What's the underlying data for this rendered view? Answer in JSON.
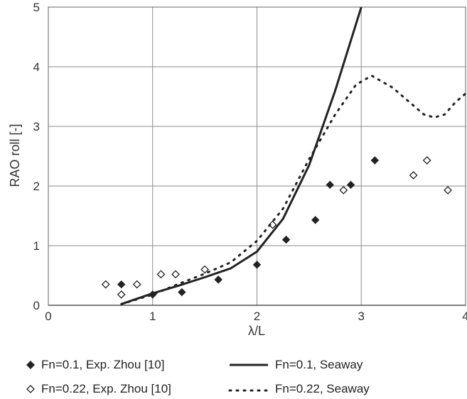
{
  "chart_data": {
    "type": "scatter",
    "xlabel": "λ/L",
    "ylabel": "RAO roll [-]",
    "xlim": [
      0,
      4
    ],
    "ylim": [
      0,
      5
    ],
    "xticks": [
      "0",
      "1",
      "2",
      "3",
      "4"
    ],
    "yticks": [
      "0",
      "1",
      "2",
      "3",
      "4",
      "5"
    ],
    "grid": true,
    "legend_position": "bottom",
    "series": [
      {
        "name": "Fn=0.1, Exp. Zhou [10]",
        "kind": "scatter",
        "marker": "filled-diamond",
        "color": "#222222",
        "points": [
          [
            0.7,
            0.35
          ],
          [
            1.0,
            0.18
          ],
          [
            1.28,
            0.22
          ],
          [
            1.63,
            0.43
          ],
          [
            2.0,
            0.68
          ],
          [
            2.28,
            1.1
          ],
          [
            2.56,
            1.43
          ],
          [
            2.7,
            2.02
          ],
          [
            2.9,
            2.02
          ],
          [
            3.13,
            2.43
          ]
        ]
      },
      {
        "name": "Fn=0.1, Seaway",
        "kind": "line",
        "style": "solid",
        "color": "#222222",
        "points": [
          [
            0.7,
            0.02
          ],
          [
            1.0,
            0.2
          ],
          [
            1.25,
            0.33
          ],
          [
            1.5,
            0.47
          ],
          [
            1.75,
            0.62
          ],
          [
            2.0,
            0.9
          ],
          [
            2.25,
            1.45
          ],
          [
            2.5,
            2.35
          ],
          [
            2.75,
            3.6
          ],
          [
            3.0,
            5.0
          ]
        ]
      },
      {
        "name": "Fn=0.22, Exp. Zhou [10]",
        "kind": "scatter",
        "marker": "open-diamond",
        "color": "#222222",
        "points": [
          [
            0.55,
            0.35
          ],
          [
            0.7,
            0.18
          ],
          [
            0.85,
            0.35
          ],
          [
            1.08,
            0.52
          ],
          [
            1.22,
            0.52
          ],
          [
            1.5,
            0.6
          ],
          [
            2.15,
            1.35
          ],
          [
            2.83,
            1.93
          ],
          [
            3.5,
            2.18
          ],
          [
            3.63,
            2.43
          ],
          [
            3.83,
            1.93
          ]
        ]
      },
      {
        "name": "Fn=0.22, Seaway",
        "kind": "line",
        "style": "dotted",
        "color": "#222222",
        "points": [
          [
            0.7,
            0.02
          ],
          [
            1.0,
            0.18
          ],
          [
            1.25,
            0.36
          ],
          [
            1.5,
            0.53
          ],
          [
            1.75,
            0.72
          ],
          [
            2.0,
            1.08
          ],
          [
            2.25,
            1.62
          ],
          [
            2.5,
            2.45
          ],
          [
            2.75,
            3.2
          ],
          [
            2.95,
            3.7
          ],
          [
            3.1,
            3.85
          ],
          [
            3.3,
            3.65
          ],
          [
            3.5,
            3.35
          ],
          [
            3.6,
            3.2
          ],
          [
            3.7,
            3.15
          ],
          [
            3.8,
            3.2
          ],
          [
            3.9,
            3.4
          ],
          [
            4.0,
            3.55
          ]
        ]
      }
    ]
  }
}
